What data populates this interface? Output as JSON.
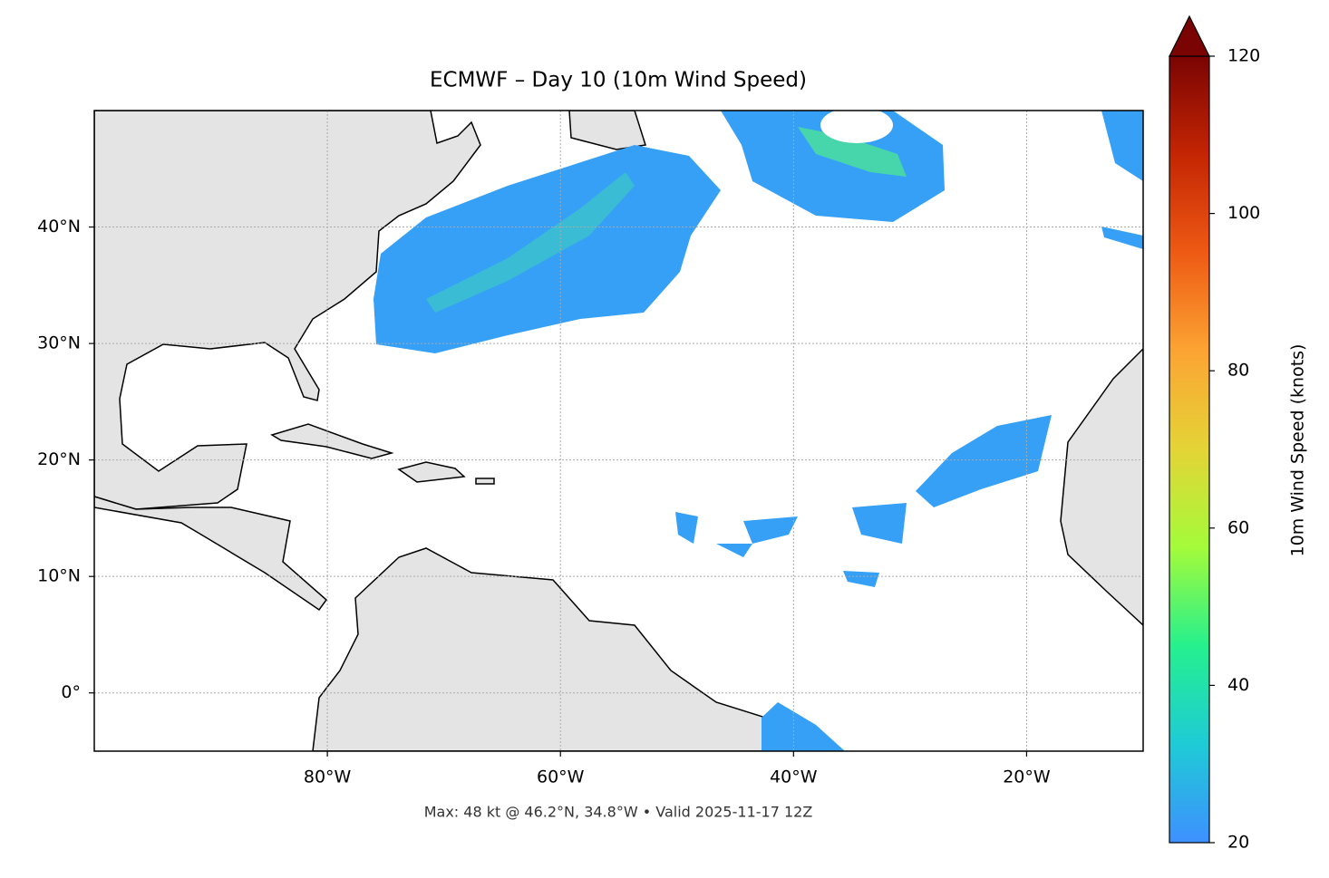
{
  "chart_data": {
    "type": "map",
    "title": "ECMWF – Day 10 (10m Wind Speed)",
    "footer": "Max: 48 kt @ 46.2°N, 34.8°W • Valid 2025-11-17 12Z",
    "xlim": [
      -100,
      -10
    ],
    "ylim": [
      -5,
      50
    ],
    "xticks": [
      {
        "value": -80,
        "label": "80°W"
      },
      {
        "value": -60,
        "label": "60°W"
      },
      {
        "value": -40,
        "label": "40°W"
      },
      {
        "value": -20,
        "label": "20°W"
      }
    ],
    "yticks": [
      {
        "value": 0,
        "label": "0°"
      },
      {
        "value": 10,
        "label": "10°N"
      },
      {
        "value": 20,
        "label": "20°N"
      },
      {
        "value": 30,
        "label": "30°N"
      },
      {
        "value": 40,
        "label": "40°N"
      }
    ],
    "grid": true,
    "colorbar": {
      "label": "10m Wind Speed (knots)",
      "lim": [
        20,
        120
      ],
      "ticks": [
        20,
        40,
        60,
        80,
        100,
        120
      ],
      "extend": "max",
      "colors": [
        "#3e90ff",
        "#1ecbd6",
        "#25f08e",
        "#a4fb3a",
        "#e4d436",
        "#fca433",
        "#ee5a14",
        "#c42503",
        "#7a0403"
      ]
    }
  }
}
